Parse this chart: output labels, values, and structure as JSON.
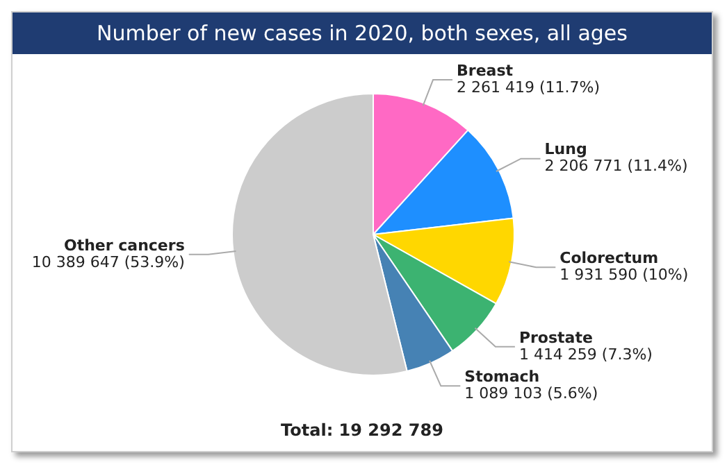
{
  "chart_data": {
    "type": "pie",
    "title": "Number of new cases in 2020, both sexes, all ages",
    "categories": [
      "Breast",
      "Lung",
      "Colorectum",
      "Prostate",
      "Stomach",
      "Other cancers"
    ],
    "values": [
      2261419,
      2206771,
      1931590,
      1414259,
      1089103,
      10389647
    ],
    "colors": [
      "#ff69c4",
      "#1e8fff",
      "#ffd700",
      "#3cb371",
      "#4682b4",
      "#cccccc"
    ],
    "value_labels": [
      "2 261 419 (11.7%)",
      "2 206 771 (11.4%)",
      "1 931 590 (10%)",
      "1 414 259 (7.3%)",
      "1 089 103 (5.6%)",
      "10 389 647 (53.9%)"
    ],
    "annotations": [
      "Total: 19 292 789"
    ],
    "legend": false
  }
}
